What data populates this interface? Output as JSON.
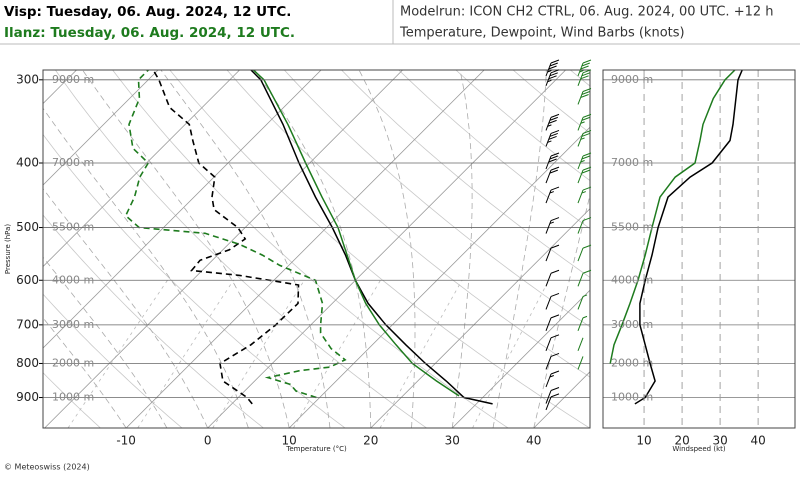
{
  "header": {
    "visp": "Visp: Tuesday, 06. Aug. 2024, 12 UTC.",
    "ilanz": "Ilanz: Tuesday, 06. Aug. 2024, 12 UTC.",
    "model_run": "Modelrun: ICON CH2 CTRL, 06. Aug. 2024, 00 UTC. +12 h",
    "subtitle": "Temperature, Dewpoint, Wind Barbs (knots)"
  },
  "footer": "© Meteoswiss (2024)",
  "chart_data": [
    {
      "type": "skew-t",
      "xlabel": "Temperature (°C)",
      "ylabel": "Pressure (hPa)",
      "log_y": true,
      "xlim": [
        -20.2,
        46.9
      ],
      "ylim": [
        1000,
        290
      ],
      "xticks": [
        -10,
        0,
        10,
        20,
        30,
        40
      ],
      "yticks": [
        300,
        400,
        500,
        600,
        700,
        800,
        900
      ],
      "height_ticks": [
        {
          "value": 9000,
          "label": "9000 m"
        },
        {
          "value": 7000,
          "label": "7000 m"
        },
        {
          "value": 5500,
          "label": "5500 m"
        },
        {
          "value": 4000,
          "label": "4000 m"
        },
        {
          "value": 3000,
          "label": "3000 m"
        },
        {
          "value": 2000,
          "label": "2000 m"
        },
        {
          "value": 1000,
          "label": "1000 m"
        }
      ],
      "series": [
        {
          "color": "#000000",
          "dashed": false,
          "pressure": [
            920,
            900,
            850,
            800,
            750,
            700,
            650,
            600,
            550,
            500,
            450,
            400,
            350,
            300,
            290
          ],
          "values": [
            32.0,
            27.7,
            23.5,
            18.8,
            14.1,
            9.2,
            4.4,
            0,
            -4.3,
            -9.3,
            -15.1,
            -21.3,
            -28.0,
            -36.2,
            -38.6
          ]
        },
        {
          "color": "#1e7b1e",
          "dashed": false,
          "pressure": [
            895,
            850,
            800,
            750,
            700,
            650,
            600,
            550,
            500,
            450,
            400,
            350,
            300,
            290
          ],
          "values": [
            26.9,
            22.3,
            17.2,
            12.9,
            8.4,
            4.1,
            0,
            -4.1,
            -8.6,
            -14.3,
            -20.5,
            -27.4,
            -35.8,
            -38.3
          ]
        },
        {
          "color": "#000000",
          "dashed": true,
          "pressure": [
            920,
            900,
            850,
            800,
            750,
            700,
            650,
            610,
            590,
            580,
            560,
            540,
            520,
            500,
            470,
            450,
            420,
            400,
            370,
            350,
            330,
            300,
            290
          ],
          "values": [
            2.5,
            1.1,
            -3.9,
            -6.4,
            -4.9,
            -4.3,
            -4.2,
            -6.4,
            -14.8,
            -21.3,
            -21.5,
            -19.2,
            -18.6,
            -20.9,
            -26.0,
            -27.8,
            -29.9,
            -33.6,
            -37.1,
            -39.5,
            -44.0,
            -48.7,
            -50.6
          ]
        },
        {
          "color": "#1e7b1e",
          "dashed": true,
          "pressure": [
            900,
            880,
            860,
            840,
            820,
            810,
            790,
            760,
            720,
            700,
            650,
            600,
            570,
            550,
            530,
            510,
            500,
            480,
            450,
            420,
            400,
            380,
            350,
            320,
            300,
            290
          ],
          "values": [
            9.6,
            6.3,
            4.8,
            1.2,
            4.3,
            7.5,
            8.5,
            5.4,
            2.2,
            1.2,
            -1.2,
            -4.9,
            -11.1,
            -14.5,
            -18.6,
            -24.2,
            -33.0,
            -36.1,
            -37.3,
            -39.1,
            -39.8,
            -43.5,
            -46.9,
            -48.8,
            -51.2,
            -51.2
          ]
        }
      ]
    },
    {
      "type": "wind-profile",
      "xlabel": "Windspeed (kt)",
      "log_y": true,
      "xlim": [
        -0.8,
        49.7
      ],
      "ylim": [
        1000,
        290
      ],
      "xticks": [
        10,
        20,
        30,
        40
      ],
      "yticks": [
        300,
        400,
        500,
        600,
        700,
        800,
        900
      ],
      "series": [
        {
          "color": "#000000",
          "pressure": [
            920,
            900,
            850,
            800,
            750,
            700,
            650,
            600,
            550,
            500,
            450,
            420,
            400,
            370,
            350,
            300,
            290
          ],
          "values": [
            7.6,
            10.3,
            12.9,
            11.6,
            10.3,
            8.9,
            8.9,
            10.3,
            12.1,
            13.7,
            16.3,
            22.1,
            27.9,
            32.6,
            33.4,
            34.7,
            35.8
          ]
        },
        {
          "color": "#1e7b1e",
          "pressure": [
            800,
            750,
            700,
            650,
            600,
            550,
            500,
            450,
            420,
            400,
            370,
            350,
            320,
            300,
            290
          ],
          "values": [
            1.1,
            2.1,
            4.2,
            6.3,
            8.4,
            10.3,
            12.1,
            14.2,
            18.2,
            23.4,
            24.7,
            25.5,
            28.2,
            31.3,
            33.9
          ]
        }
      ]
    }
  ]
}
